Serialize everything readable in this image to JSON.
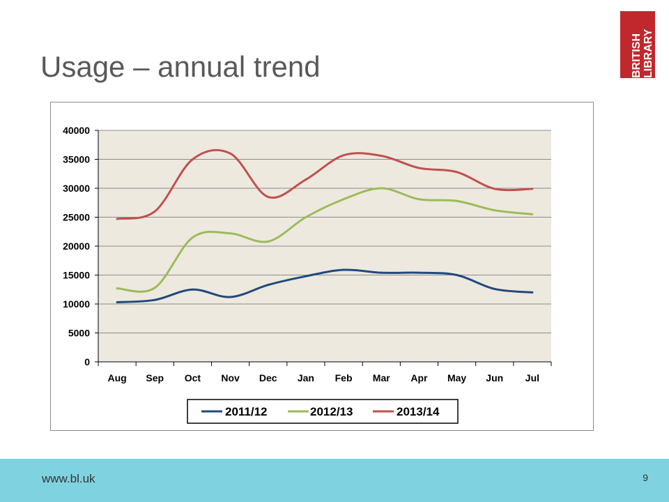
{
  "slide": {
    "title": "Usage – annual trend",
    "footer_url": "www.bl.uk",
    "page_number": "9"
  },
  "logo": {
    "line1": "BRITISH",
    "line2": "LIBRARY",
    "color": "#c0282d"
  },
  "colors": {
    "footer_bar": "#7fd3e0",
    "plot_background": "#ede9df",
    "gridline": "#8c8c8c"
  },
  "chart_data": {
    "type": "line",
    "categories": [
      "Aug",
      "Sep",
      "Oct",
      "Nov",
      "Dec",
      "Jan",
      "Feb",
      "Mar",
      "Apr",
      "May",
      "Jun",
      "Jul"
    ],
    "ylim": [
      0,
      40000
    ],
    "yticks": [
      0,
      5000,
      10000,
      15000,
      20000,
      25000,
      30000,
      35000,
      40000
    ],
    "grid": true,
    "smooth": true,
    "legend_position": "bottom",
    "series": [
      {
        "name": "2011/12",
        "color": "#1f497d",
        "values": [
          10300,
          10700,
          12500,
          11200,
          13300,
          14800,
          15900,
          15400,
          15400,
          15000,
          12600,
          12000
        ]
      },
      {
        "name": "2012/13",
        "color": "#9bbb59",
        "values": [
          12700,
          12800,
          21500,
          22200,
          20800,
          25000,
          28100,
          30000,
          28100,
          27800,
          26200,
          25500
        ]
      },
      {
        "name": "2013/14",
        "color": "#c0504d",
        "values": [
          24700,
          26000,
          35000,
          36000,
          28500,
          31500,
          35700,
          35600,
          33500,
          32800,
          29900,
          29900
        ]
      }
    ]
  }
}
